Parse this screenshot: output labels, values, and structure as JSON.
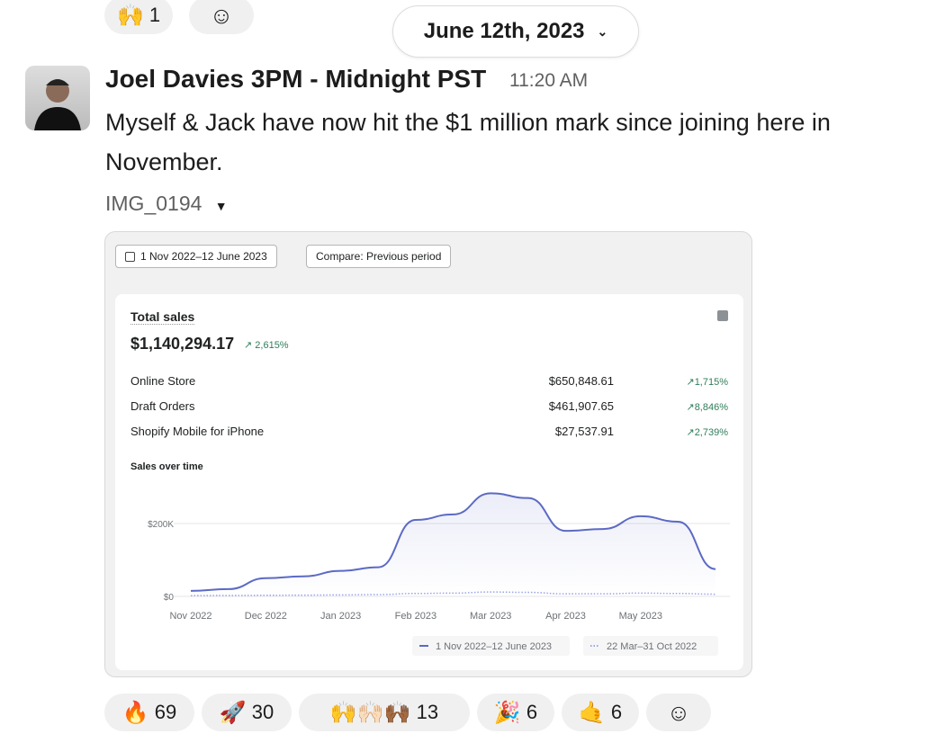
{
  "top_reactions": [
    {
      "emoji": "🙌",
      "count": "1"
    }
  ],
  "date_divider": "June 12th, 2023",
  "message": {
    "author": "Joel Davies 3PM - Midnight PST",
    "time": "11:20 AM",
    "text": "Myself & Jack have now hit the $1 million mark since joining here in November.",
    "file_name": "IMG_0194"
  },
  "image": {
    "date_range": "1 Nov 2022–12 June 2023",
    "compare": "Compare: Previous period",
    "title": "Total sales",
    "total": "$1,140,294.17",
    "total_change": "2,615%",
    "rows": [
      {
        "label": "Online Store",
        "value": "$650,848.61",
        "change": "1,715%"
      },
      {
        "label": "Draft Orders",
        "value": "$461,907.65",
        "change": "8,846%"
      },
      {
        "label": "Shopify Mobile for iPhone",
        "value": "$27,537.91",
        "change": "2,739%"
      }
    ]
  },
  "chart_data": {
    "type": "line",
    "title": "Sales over time",
    "categories": [
      "Nov 2022",
      "Dec 2022",
      "Jan 2023",
      "Feb 2023",
      "Mar 2023",
      "Apr 2023",
      "May 2023"
    ],
    "y_ticks": [
      "$0",
      "$200K"
    ],
    "ylim": [
      0,
      300000
    ],
    "x": [
      0,
      0.5,
      1,
      1.5,
      2,
      2.5,
      3,
      3.5,
      4,
      4.5,
      5,
      5.5,
      6,
      6.5,
      7
    ],
    "series": [
      {
        "name": "1 Nov 2022–12 June 2023",
        "color": "#5c6ac4",
        "values": [
          15000,
          20000,
          50000,
          55000,
          70000,
          80000,
          210000,
          225000,
          283000,
          270000,
          180000,
          185000,
          220000,
          205000,
          75000
        ]
      },
      {
        "name": "22 Mar–31 Oct 2022",
        "color": "#9aa4e8",
        "values": [
          2000,
          2500,
          3000,
          3500,
          4000,
          5000,
          8000,
          9000,
          12000,
          11000,
          7000,
          7000,
          9000,
          8000,
          6000
        ]
      }
    ],
    "legend": "bottom-right"
  },
  "reactions": [
    {
      "emoji": "🔥",
      "count": "69"
    },
    {
      "emoji": "🚀",
      "count": "30"
    },
    {
      "emoji": "🙌🙌🏻🙌🏾",
      "count": "13"
    },
    {
      "emoji": "🎉",
      "count": "6"
    },
    {
      "emoji": "🤙",
      "count": "6"
    }
  ]
}
